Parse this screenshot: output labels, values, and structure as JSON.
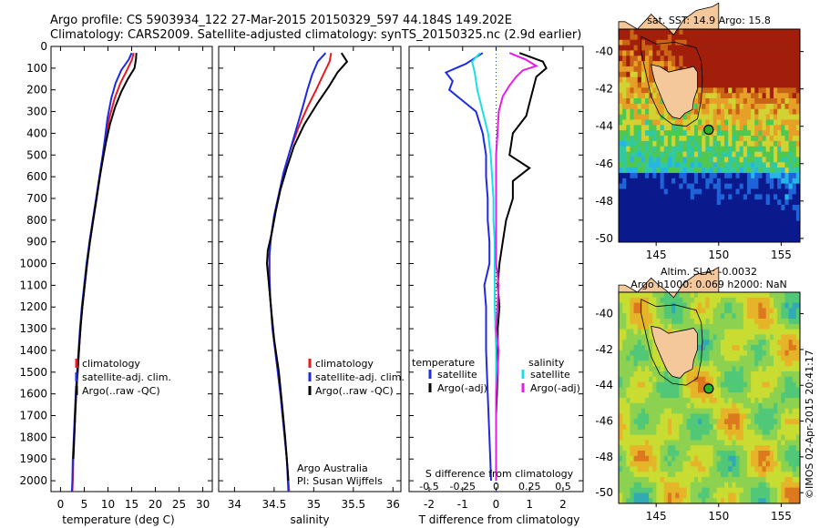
{
  "header": {
    "line1": "Argo profile: CS 5903934_122 27-Mar-2015 20150329_597 44.184S 149.202E",
    "line2": "Climatology: CARS2009. Satellite-adjusted climatology: synTS_20150325.nc (2.9d earlier)"
  },
  "colors": {
    "climatology": "#e8191f",
    "satellite": "#1f2be0",
    "argo": "#000000",
    "s_satellite": "#19e0e8",
    "s_argo": "#e81ce8"
  },
  "chart_data": [
    {
      "type": "line",
      "panel": "temperature",
      "xlabel": "temperature (deg C)",
      "xticks": [
        0,
        5,
        10,
        15,
        20,
        25,
        30
      ],
      "xlim": [
        -2,
        32
      ],
      "ylim": [
        2050,
        0
      ],
      "yticks": [
        0,
        100,
        200,
        300,
        400,
        500,
        600,
        700,
        800,
        900,
        1000,
        1100,
        1200,
        1300,
        1400,
        1500,
        1600,
        1700,
        1800,
        1900,
        2000
      ],
      "legend": [
        "climatology",
        "satellite-adj. clim.",
        "Argo(..raw -QC)"
      ],
      "series": [
        {
          "name": "climatology",
          "color_key": "climatology",
          "points": [
            [
              15.4,
              30
            ],
            [
              15.1,
              60
            ],
            [
              14.0,
              110
            ],
            [
              12.6,
              170
            ],
            [
              11.4,
              240
            ],
            [
              10.3,
              330
            ],
            [
              9.6,
              420
            ],
            [
              9.0,
              500
            ],
            [
              8.3,
              600
            ],
            [
              7.6,
              700
            ],
            [
              6.9,
              800
            ],
            [
              6.2,
              900
            ],
            [
              5.6,
              1000
            ],
            [
              5.1,
              1100
            ],
            [
              4.6,
              1200
            ],
            [
              4.2,
              1300
            ],
            [
              3.9,
              1400
            ],
            [
              3.6,
              1500
            ],
            [
              3.3,
              1600
            ],
            [
              3.1,
              1700
            ],
            [
              2.9,
              1800
            ],
            [
              2.7,
              1900
            ],
            [
              2.6,
              2000
            ],
            [
              2.5,
              2050
            ]
          ]
        },
        {
          "name": "satellite-adj. clim.",
          "color_key": "satellite",
          "points": [
            [
              15.0,
              30
            ],
            [
              14.4,
              60
            ],
            [
              12.8,
              110
            ],
            [
              11.6,
              170
            ],
            [
              10.7,
              240
            ],
            [
              9.9,
              330
            ],
            [
              9.4,
              420
            ],
            [
              8.9,
              500
            ],
            [
              8.2,
              600
            ],
            [
              7.5,
              700
            ],
            [
              6.8,
              800
            ],
            [
              6.1,
              900
            ],
            [
              5.5,
              1000
            ],
            [
              5.0,
              1100
            ],
            [
              4.5,
              1200
            ],
            [
              4.1,
              1300
            ],
            [
              3.8,
              1400
            ],
            [
              3.5,
              1500
            ],
            [
              3.2,
              1600
            ],
            [
              3.0,
              1700
            ],
            [
              2.8,
              1800
            ],
            [
              2.6,
              1900
            ],
            [
              2.5,
              2000
            ],
            [
              2.4,
              2050
            ]
          ]
        },
        {
          "name": "Argo(..raw -QC)",
          "color_key": "argo",
          "points": [
            [
              16.0,
              30
            ],
            [
              15.9,
              60
            ],
            [
              15.6,
              100
            ],
            [
              14.2,
              150
            ],
            [
              12.8,
              210
            ],
            [
              11.5,
              280
            ],
            [
              10.4,
              360
            ],
            [
              9.6,
              440
            ],
            [
              9.0,
              510
            ],
            [
              8.3,
              600
            ],
            [
              7.6,
              700
            ],
            [
              6.9,
              800
            ],
            [
              6.2,
              900
            ],
            [
              5.6,
              1000
            ],
            [
              5.1,
              1100
            ],
            [
              4.6,
              1200
            ],
            [
              4.2,
              1300
            ],
            [
              3.9,
              1400
            ],
            [
              3.6,
              1500
            ],
            [
              3.3,
              1600
            ],
            [
              3.1,
              1700
            ],
            [
              2.9,
              1800
            ],
            [
              2.7,
              1900
            ]
          ]
        }
      ]
    },
    {
      "type": "line",
      "panel": "salinity",
      "xlabel": "salinity",
      "xticks": [
        34,
        34.5,
        35,
        35.5,
        36
      ],
      "xlim": [
        33.8,
        36.1
      ],
      "ylim": [
        2050,
        0
      ],
      "legend": [
        "climatology",
        "satellite-adj. clim.",
        "Argo(..raw -QC)"
      ],
      "annotation": [
        "Argo Australia",
        "PI: Susan Wijffels"
      ],
      "series": [
        {
          "name": "climatology",
          "color_key": "climatology",
          "points": [
            [
              35.22,
              30
            ],
            [
              35.2,
              70
            ],
            [
              35.12,
              130
            ],
            [
              35.03,
              200
            ],
            [
              34.92,
              280
            ],
            [
              34.8,
              380
            ],
            [
              34.7,
              480
            ],
            [
              34.62,
              580
            ],
            [
              34.56,
              680
            ],
            [
              34.5,
              780
            ],
            [
              34.46,
              880
            ],
            [
              34.44,
              960
            ],
            [
              34.44,
              1050
            ],
            [
              34.45,
              1150
            ],
            [
              34.48,
              1300
            ],
            [
              34.53,
              1450
            ],
            [
              34.58,
              1600
            ],
            [
              34.62,
              1750
            ],
            [
              34.66,
              1900
            ],
            [
              34.69,
              2050
            ]
          ]
        },
        {
          "name": "satellite-adj. clim.",
          "color_key": "satellite",
          "points": [
            [
              35.15,
              30
            ],
            [
              35.05,
              70
            ],
            [
              34.98,
              130
            ],
            [
              34.92,
              200
            ],
            [
              34.86,
              280
            ],
            [
              34.78,
              380
            ],
            [
              34.7,
              480
            ],
            [
              34.62,
              580
            ],
            [
              34.56,
              680
            ],
            [
              34.5,
              780
            ],
            [
              34.46,
              880
            ],
            [
              34.44,
              960
            ],
            [
              34.44,
              1050
            ],
            [
              34.45,
              1150
            ],
            [
              34.48,
              1300
            ],
            [
              34.53,
              1450
            ],
            [
              34.58,
              1600
            ],
            [
              34.62,
              1750
            ],
            [
              34.66,
              1900
            ],
            [
              34.68,
              2050
            ]
          ]
        },
        {
          "name": "Argo(..raw -QC)",
          "color_key": "argo",
          "points": [
            [
              35.35,
              30
            ],
            [
              35.42,
              70
            ],
            [
              35.3,
              120
            ],
            [
              35.2,
              180
            ],
            [
              35.05,
              260
            ],
            [
              34.88,
              360
            ],
            [
              34.75,
              460
            ],
            [
              34.66,
              560
            ],
            [
              34.58,
              660
            ],
            [
              34.52,
              760
            ],
            [
              34.47,
              860
            ],
            [
              34.42,
              940
            ],
            [
              34.41,
              1000
            ],
            [
              34.43,
              1080
            ],
            [
              34.46,
              1200
            ],
            [
              34.5,
              1350
            ],
            [
              34.56,
              1500
            ],
            [
              34.6,
              1650
            ],
            [
              34.64,
              1800
            ],
            [
              34.67,
              1950
            ],
            [
              34.68,
              2000
            ]
          ]
        }
      ]
    },
    {
      "type": "line",
      "panel": "difference",
      "xlabel": "T difference from climatology",
      "xticks": [
        -2,
        -1,
        0,
        1,
        2
      ],
      "xlim": [
        -2.6,
        2.6
      ],
      "top_axis_label": "S difference from climatology",
      "top_ticks": [
        "-0.5",
        "-0.25",
        "0",
        "0.25",
        "0.5"
      ],
      "ylim": [
        2050,
        0
      ],
      "legend_headers": [
        "temperature",
        "salinity"
      ],
      "legend": [
        "satellite",
        "Argo(-adj)",
        "satellite",
        "Argo(-adj)"
      ],
      "series": [
        {
          "name": "satellite",
          "group": "temperature",
          "color_key": "satellite",
          "points": [
            [
              -0.4,
              30
            ],
            [
              -0.9,
              80
            ],
            [
              -1.5,
              120
            ],
            [
              -1.3,
              160
            ],
            [
              -1.4,
              200
            ],
            [
              -1.0,
              250
            ],
            [
              -0.6,
              300
            ],
            [
              -0.4,
              400
            ],
            [
              -0.3,
              500
            ],
            [
              -0.3,
              600
            ],
            [
              -0.25,
              700
            ],
            [
              -0.25,
              800
            ],
            [
              -0.2,
              900
            ],
            [
              -0.2,
              1000
            ],
            [
              -0.35,
              1100
            ],
            [
              -0.3,
              1200
            ],
            [
              -0.3,
              1400
            ],
            [
              -0.25,
              1600
            ],
            [
              -0.2,
              1800
            ],
            [
              -0.15,
              2000
            ]
          ]
        },
        {
          "name": "Argo(-adj)",
          "group": "temperature",
          "color_key": "argo",
          "points": [
            [
              0.7,
              30
            ],
            [
              1.4,
              70
            ],
            [
              1.5,
              100
            ],
            [
              1.2,
              140
            ],
            [
              1.1,
              200
            ],
            [
              1.0,
              260
            ],
            [
              0.9,
              320
            ],
            [
              0.5,
              400
            ],
            [
              0.4,
              500
            ],
            [
              1.0,
              560
            ],
            [
              0.5,
              620
            ],
            [
              0.5,
              700
            ],
            [
              0.3,
              800
            ],
            [
              0.2,
              900
            ],
            [
              0.1,
              1000
            ],
            [
              0.05,
              1100
            ],
            [
              0.1,
              1200
            ],
            [
              0.05,
              1300
            ],
            [
              0.05,
              1500
            ],
            [
              0.0,
              1700
            ],
            [
              0.0,
              1900
            ],
            [
              0.0,
              2000
            ]
          ]
        },
        {
          "name": "satellite",
          "group": "salinity",
          "color_key": "s_satellite",
          "points": [
            [
              -0.12,
              30
            ],
            [
              -0.18,
              70
            ],
            [
              -0.16,
              120
            ],
            [
              -0.14,
              200
            ],
            [
              -0.1,
              300
            ],
            [
              -0.06,
              400
            ],
            [
              -0.04,
              500
            ],
            [
              -0.03,
              600
            ],
            [
              -0.02,
              700
            ],
            [
              -0.02,
              800
            ],
            [
              -0.01,
              900
            ],
            [
              -0.01,
              1000
            ],
            [
              -0.01,
              1100
            ],
            [
              -0.01,
              1200
            ],
            [
              0.0,
              1400
            ],
            [
              0.0,
              1600
            ],
            [
              0.0,
              1800
            ],
            [
              0.0,
              2000
            ]
          ]
        },
        {
          "name": "Argo(-adj)",
          "group": "salinity",
          "color_key": "s_argo",
          "points": [
            [
              0.1,
              30
            ],
            [
              0.22,
              60
            ],
            [
              0.3,
              90
            ],
            [
              0.2,
              110
            ],
            [
              0.15,
              140
            ],
            [
              0.1,
              180
            ],
            [
              0.05,
              230
            ],
            [
              0.02,
              300
            ],
            [
              0.01,
              400
            ],
            [
              0.0,
              500
            ],
            [
              0.0,
              700
            ],
            [
              0.0,
              900
            ],
            [
              0.0,
              1000
            ],
            [
              0.02,
              1100
            ],
            [
              0.0,
              1300
            ],
            [
              0.02,
              1400
            ],
            [
              0.01,
              1500
            ],
            [
              0.0,
              1600
            ],
            [
              0.0,
              1800
            ],
            [
              0.0,
              2000
            ]
          ]
        }
      ]
    },
    {
      "type": "heatmap",
      "panel": "sst_map",
      "title": "sat. SST: 14.9  Argo: 15.8",
      "xticks": [
        145,
        150,
        155
      ],
      "yticks": [
        -40,
        -42,
        -44,
        -46,
        -48,
        -50
      ],
      "xlim": [
        142,
        156.5
      ],
      "ylim": [
        -50.2,
        -38.8
      ],
      "profile_location": [
        149.202,
        -44.184
      ],
      "colors": [
        "#0a1a8c",
        "#1e64d8",
        "#28b4e6",
        "#32c8a0",
        "#50c850",
        "#d2d232",
        "#e6a028",
        "#c86414",
        "#a01e0a"
      ]
    },
    {
      "type": "heatmap",
      "panel": "sla_map",
      "title_line1": "Altim. SLA: -0.0032",
      "title_line2": "Argo h1000: 0.069  h2000: NaN",
      "xticks": [
        145,
        150,
        155
      ],
      "yticks": [
        -40,
        -42,
        -44,
        -46,
        -48,
        -50
      ],
      "xlim": [
        142,
        156.5
      ],
      "ylim": [
        -50.6,
        -38.8
      ],
      "profile_location": [
        149.202,
        -44.184
      ],
      "colors": [
        "#32aab4",
        "#50c878",
        "#8cd250",
        "#c8dc32",
        "#e6b428",
        "#dc781e"
      ]
    }
  ],
  "watermark": "©IMOS 02-Apr-2015 20:41:17"
}
